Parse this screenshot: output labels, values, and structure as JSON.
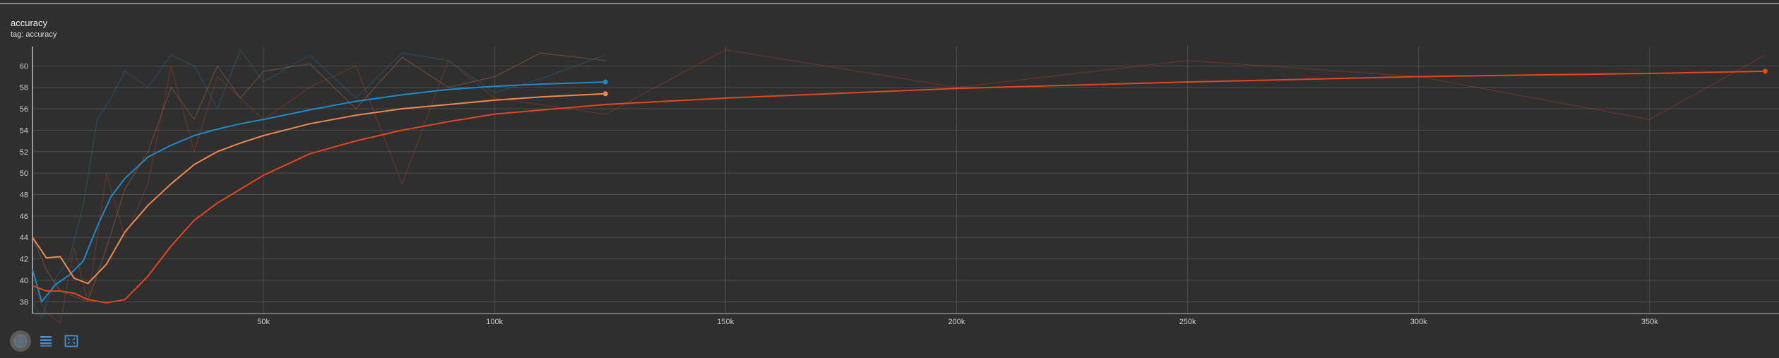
{
  "card": {
    "title": "accuracy",
    "tag_label": "tag: accuracy"
  },
  "toolbar": {
    "buttons": [
      {
        "icon": "expand-chart-icon",
        "active": true
      },
      {
        "icon": "list-icon",
        "active": false
      },
      {
        "icon": "fit-domain-icon",
        "active": false
      }
    ]
  },
  "colors": {
    "background": "#2f2f2f",
    "grid": "#4a4a4a",
    "axis": "#bdbdbd",
    "blue": "#1f88c8",
    "orange": "#f0894f",
    "red": "#e1461e"
  },
  "chart_data": {
    "type": "line",
    "title": "accuracy",
    "xlabel": "",
    "ylabel": "",
    "xlim": [
      0,
      378000
    ],
    "ylim": [
      36.9,
      61.8
    ],
    "x_ticks": [
      50000,
      100000,
      150000,
      200000,
      250000,
      300000,
      350000
    ],
    "x_tick_labels": [
      "50k",
      "100k",
      "150k",
      "200k",
      "250k",
      "300k",
      "350k"
    ],
    "y_ticks": [
      38,
      40,
      42,
      44,
      46,
      48,
      50,
      52,
      54,
      56,
      58,
      60
    ],
    "y_tick_labels": [
      "38",
      "40",
      "42",
      "44",
      "46",
      "48",
      "50",
      "52",
      "54",
      "56",
      "58",
      "60"
    ],
    "grid": true,
    "legend": "none",
    "series": [
      {
        "color": "#1f88c8",
        "x": [
          0,
          2000,
          5000,
          8000,
          11000,
          14000,
          17000,
          20000,
          25000,
          30000,
          35000,
          40000,
          45000,
          50000,
          60000,
          70000,
          80000,
          90000,
          100000,
          110000,
          124000
        ],
        "y": [
          41.0,
          38.0,
          39.6,
          40.5,
          41.8,
          45.0,
          47.8,
          49.5,
          51.5,
          52.6,
          53.5,
          54.1,
          54.6,
          55.0,
          55.9,
          56.7,
          57.3,
          57.8,
          58.1,
          58.3,
          58.5
        ],
        "raw": [
          38.0,
          36.5,
          40.2,
          42.0,
          47.0,
          55.0,
          57.0,
          59.5,
          58.0,
          61.0,
          60.0,
          56.0,
          61.5,
          58.5,
          61.0,
          57.0,
          61.2,
          60.5,
          57.5,
          58.8,
          61.0
        ]
      },
      {
        "color": "#f0894f",
        "x": [
          0,
          3000,
          6000,
          9000,
          12000,
          16000,
          20000,
          25000,
          30000,
          35000,
          40000,
          45000,
          50000,
          60000,
          70000,
          80000,
          90000,
          100000,
          110000,
          124000
        ],
        "y": [
          44.0,
          42.1,
          42.2,
          40.2,
          39.7,
          41.5,
          44.5,
          47.0,
          49.0,
          50.8,
          52.0,
          52.8,
          53.5,
          54.6,
          55.4,
          56.0,
          56.4,
          56.8,
          57.1,
          57.4
        ],
        "raw": [
          44.0,
          41.0,
          39.0,
          38.5,
          38.0,
          43.0,
          48.5,
          52.0,
          58.0,
          55.0,
          60.0,
          57.0,
          59.5,
          60.2,
          56.0,
          60.8,
          58.0,
          59.0,
          61.2,
          60.5
        ]
      },
      {
        "color": "#e1461e",
        "x": [
          0,
          3000,
          6000,
          9000,
          12000,
          16000,
          20000,
          25000,
          30000,
          35000,
          40000,
          50000,
          60000,
          70000,
          80000,
          90000,
          100000,
          124000,
          150000,
          200000,
          250000,
          300000,
          350000,
          375000
        ],
        "y": [
          39.5,
          39.0,
          39.0,
          38.8,
          38.2,
          37.9,
          38.2,
          40.4,
          43.2,
          45.6,
          47.2,
          49.8,
          51.8,
          53.0,
          54.0,
          54.8,
          55.5,
          56.4,
          57.0,
          57.9,
          58.5,
          59.0,
          59.3,
          59.5
        ],
        "raw": [
          39.5,
          37.0,
          36.0,
          43.0,
          38.0,
          50.0,
          44.0,
          49.0,
          60.0,
          52.0,
          59.0,
          55.0,
          58.0,
          60.0,
          49.0,
          60.5,
          57.0,
          55.5,
          61.5,
          58.0,
          60.5,
          59.0,
          55.0,
          61.0
        ]
      }
    ]
  }
}
